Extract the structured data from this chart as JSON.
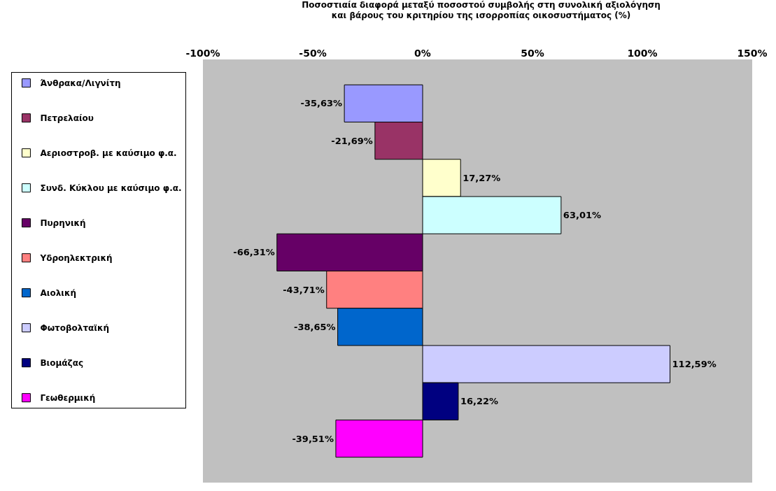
{
  "chart_data": {
    "type": "bar",
    "orientation": "horizontal",
    "title": "Ποσοστιαία διαφορά μεταξύ ποσοστού συμβολής στη συνολική αξιολόγηση\nκαι βάρους του κριτηρίου της ισορροπίας οικοσυστήματος (%)",
    "categories": [
      null
    ],
    "series": [
      {
        "name": "Άνθρακα/Λιγνίτη",
        "color": "#9999ff",
        "values": [
          -35.63
        ],
        "value_labels": [
          "-35,63%"
        ]
      },
      {
        "name": "Πετρελαίου",
        "color": "#993366",
        "values": [
          -21.69
        ],
        "value_labels": [
          "-21,69%"
        ]
      },
      {
        "name": "Αεριοστροβ. με καύσιμο φ.α.",
        "color": "#ffffcc",
        "values": [
          17.27
        ],
        "value_labels": [
          "17,27%"
        ]
      },
      {
        "name": "Συνδ. Κύκλου με καύσιμο φ.α.",
        "color": "#ccffff",
        "values": [
          63.01
        ],
        "value_labels": [
          "63,01%"
        ]
      },
      {
        "name": "Πυρηνική",
        "color": "#660066",
        "values": [
          -66.31
        ],
        "value_labels": [
          "-66,31%"
        ]
      },
      {
        "name": "Υδροηλεκτρική",
        "color": "#ff8080",
        "values": [
          -43.71
        ],
        "value_labels": [
          "-43,71%"
        ]
      },
      {
        "name": "Αιολική",
        "color": "#0066cc",
        "values": [
          -38.65
        ],
        "value_labels": [
          "-38,65%"
        ]
      },
      {
        "name": "Φωτοβολταϊκή",
        "color": "#ccccff",
        "values": [
          112.59
        ],
        "value_labels": [
          "112,59%"
        ]
      },
      {
        "name": "Βιομάζας",
        "color": "#000080",
        "values": [
          16.22
        ],
        "value_labels": [
          "16,22%"
        ]
      },
      {
        "name": "Γεωθερμική",
        "color": "#ff00ff",
        "values": [
          -39.51
        ],
        "value_labels": [
          "-39,51%"
        ]
      }
    ],
    "xlim": [
      -100,
      150
    ],
    "xticks": [
      {
        "value": -100,
        "label": "-100%"
      },
      {
        "value": -50,
        "label": "-50%"
      },
      {
        "value": 0,
        "label": "0%"
      },
      {
        "value": 50,
        "label": "50%"
      },
      {
        "value": 100,
        "label": "100%"
      },
      {
        "value": 150,
        "label": "150%"
      }
    ],
    "tick_labels": "x",
    "grid": false,
    "legend": "left"
  }
}
